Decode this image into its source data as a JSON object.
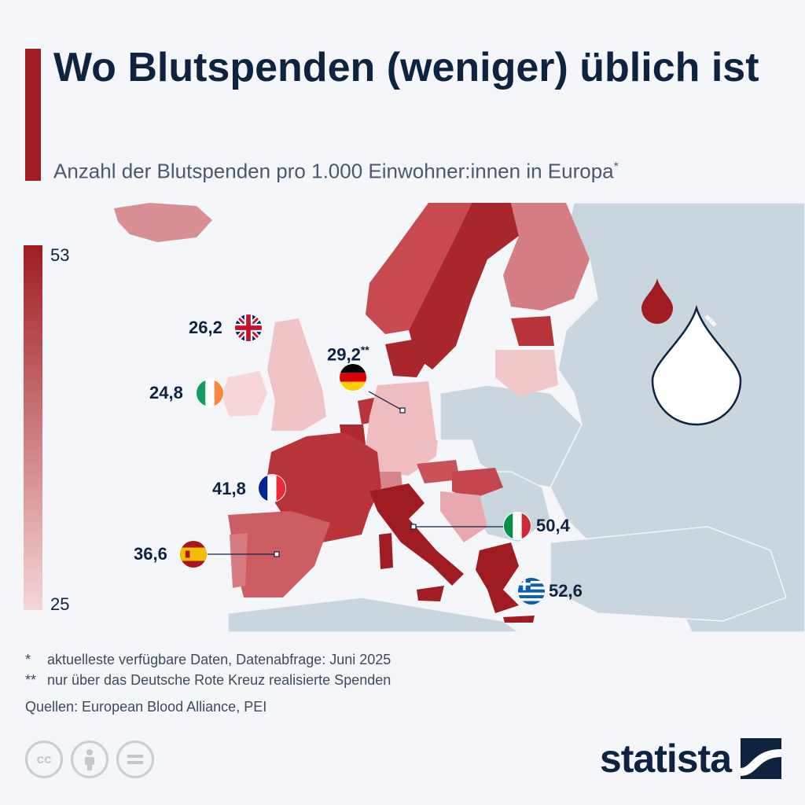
{
  "title": "Wo Blutspenden (weniger) üblich ist",
  "subtitle": "Anzahl der Blutspenden pro 1.000 Einwohner:innen in Europa",
  "subtitle_mark": "*",
  "legend": {
    "max_label": "53",
    "min_label": "25",
    "max": 53,
    "min": 25,
    "color_high": "#a01c22",
    "color_low": "#f6d6d8"
  },
  "countries": [
    {
      "name": "Großbritannien",
      "value_label": "26,2",
      "value": 26.2,
      "note": "",
      "flag": "uk-flag"
    },
    {
      "name": "Irland",
      "value_label": "24,8",
      "value": 24.8,
      "note": "",
      "flag": "ireland-flag"
    },
    {
      "name": "Deutschland",
      "value_label": "29,2",
      "value": 29.2,
      "note": "**",
      "flag": "germany-flag"
    },
    {
      "name": "Frankreich",
      "value_label": "41,8",
      "value": 41.8,
      "note": "",
      "flag": "france-flag"
    },
    {
      "name": "Spanien",
      "value_label": "36,6",
      "value": 36.6,
      "note": "",
      "flag": "spain-flag"
    },
    {
      "name": "Italien",
      "value_label": "50,4",
      "value": 50.4,
      "note": "",
      "flag": "italy-flag"
    },
    {
      "name": "Griechenland",
      "value_label": "52,6",
      "value": 52.6,
      "note": "",
      "flag": "greece-flag"
    }
  ],
  "footnotes": [
    {
      "mark": "*",
      "text": "aktuelleste verfügbare Daten, Datenabfrage: Juni 2025"
    },
    {
      "mark": "**",
      "text": "nur über das Deutsche Rote Kreuz realisierte Spenden"
    }
  ],
  "source": "Quellen: European Blood Alliance, PEI",
  "brand": "statista",
  "colors": {
    "accent": "#a01c22",
    "navy": "#0d2340",
    "sea": "#f4f6f9",
    "nodata_land": "#c9d6df"
  },
  "icons": [
    "blood-drop-icon",
    "blood-drop-outline-icon",
    "cc-icon",
    "by-icon",
    "nd-icon",
    "statista-logo-icon"
  ]
}
